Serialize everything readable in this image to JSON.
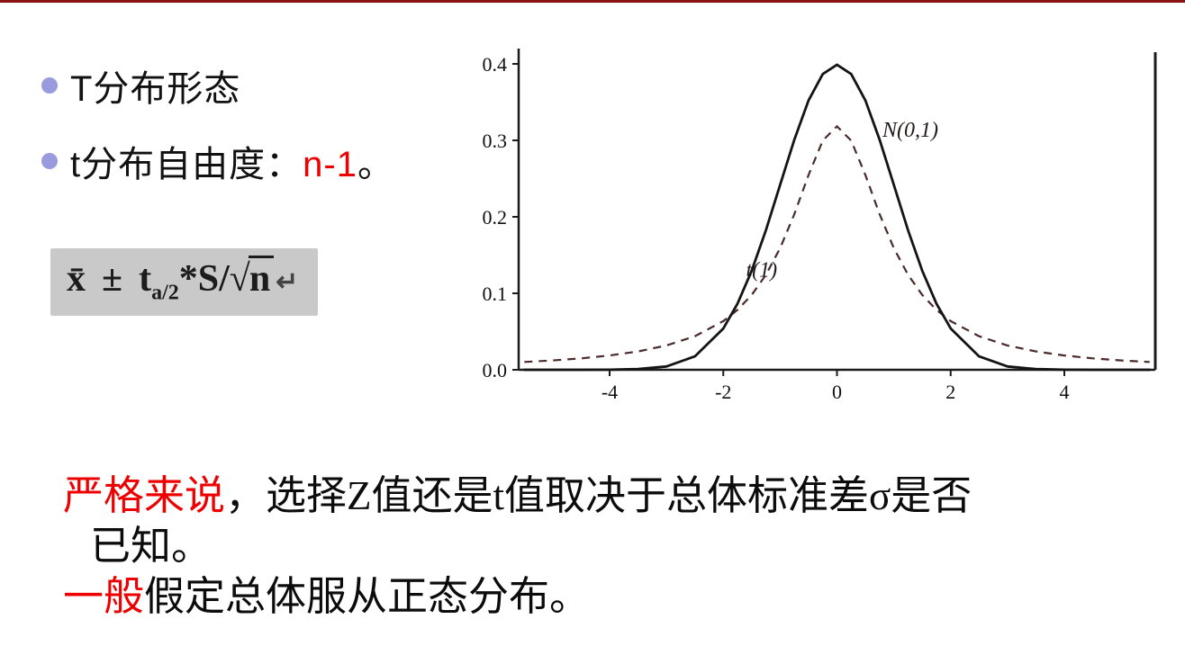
{
  "colors": {
    "highlight_red": "#ee0000",
    "bullet": "#9a9ade",
    "top_rule": "#8b1515"
  },
  "bullets": {
    "item1": "T分布形态",
    "item2_prefix": "t分布自由度：",
    "item2_highlight": "n-1",
    "item2_suffix": "。"
  },
  "formula": {
    "xbar": "x̄",
    "plusminus": "±",
    "t_base": "t",
    "t_sub": "a/2",
    "middle": "*S/",
    "radical_sign": "√",
    "radicand": "n",
    "return_mark": "↵"
  },
  "chart_data": {
    "type": "line",
    "title": "",
    "xlabel": "",
    "ylabel": "",
    "grid": false,
    "legend_position": "inline-annotations",
    "xlim": [
      -5.6,
      5.6
    ],
    "ylim": [
      0,
      0.42
    ],
    "x_ticks": [
      -4,
      -2,
      0,
      2,
      4
    ],
    "y_ticks": [
      0.0,
      0.1,
      0.2,
      0.3,
      0.4
    ],
    "x": [
      -5.5,
      -5,
      -4.5,
      -4,
      -3.5,
      -3,
      -2.5,
      -2,
      -1.75,
      -1.5,
      -1.25,
      -1,
      -0.75,
      -0.5,
      -0.25,
      0,
      0.25,
      0.5,
      0.75,
      1,
      1.25,
      1.5,
      1.75,
      2,
      2.5,
      3,
      3.5,
      4,
      4.5,
      5,
      5.5
    ],
    "series": [
      {
        "name": "N(0,1)",
        "style": "solid",
        "color": "#141414",
        "values": [
          0,
          0,
          0,
          0.0001,
          0.0009,
          0.0044,
          0.0175,
          0.054,
          0.0863,
          0.1295,
          0.1826,
          0.242,
          0.3011,
          0.3521,
          0.3867,
          0.3989,
          0.3867,
          0.3521,
          0.3011,
          0.242,
          0.1826,
          0.1295,
          0.0863,
          0.054,
          0.0175,
          0.0044,
          0.0009,
          0.0001,
          0,
          0,
          0
        ]
      },
      {
        "name": "t(1)",
        "style": "dashed",
        "color": "#4a2a2a",
        "values": [
          0.0102,
          0.0122,
          0.015,
          0.0187,
          0.024,
          0.0318,
          0.0439,
          0.0637,
          0.0784,
          0.0979,
          0.1242,
          0.1592,
          0.2037,
          0.2546,
          0.2996,
          0.3183,
          0.2996,
          0.2546,
          0.2037,
          0.1592,
          0.1242,
          0.0979,
          0.0784,
          0.0637,
          0.0439,
          0.0318,
          0.024,
          0.0187,
          0.015,
          0.0122,
          0.0102
        ]
      }
    ],
    "annotations": [
      {
        "text": "N(0,1)",
        "x": 0.8,
        "y": 0.305
      },
      {
        "text": "t(1)",
        "x": -1.6,
        "y": 0.122
      }
    ]
  },
  "paragraphs": {
    "p1_highlight": "严格来说",
    "p1_rest": "，选择Z值还是t值取决于总体标准差σ是否",
    "p1_line2": "已知。",
    "p2_highlight": "一般",
    "p2_rest": "假定总体服从正态分布。"
  }
}
